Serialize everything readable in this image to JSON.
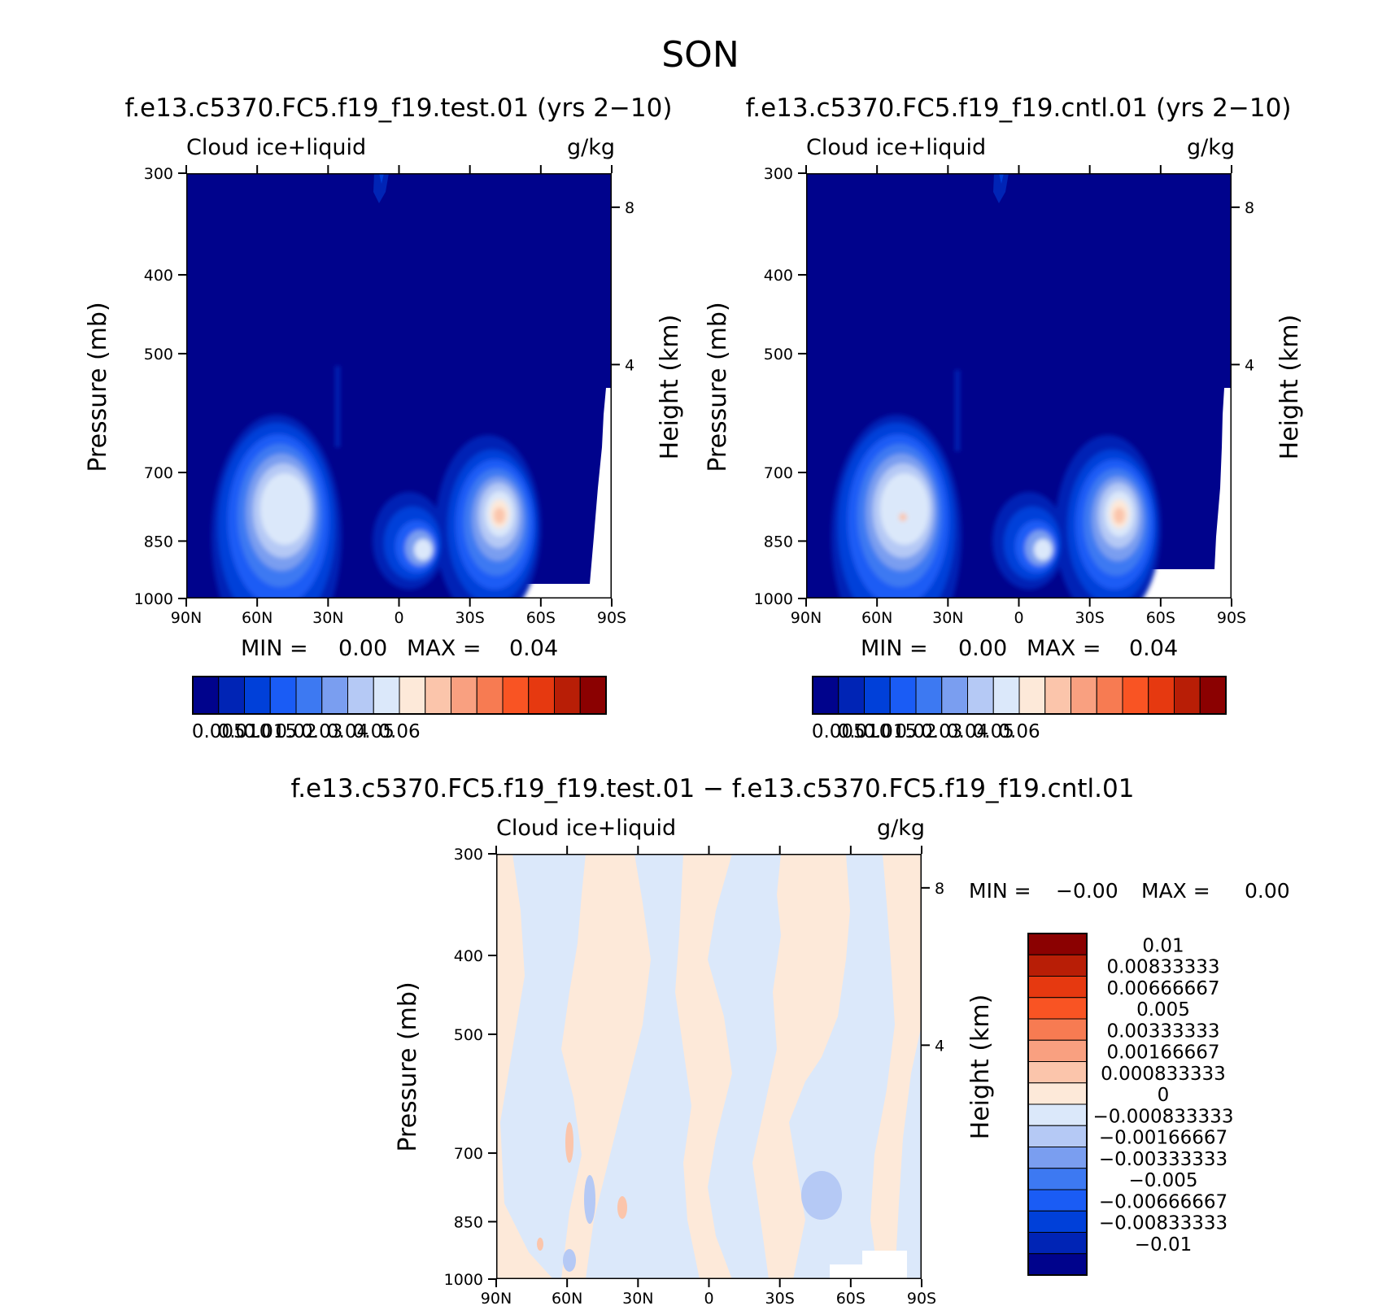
{
  "chart_data": {
    "type": "contour",
    "suptitle": "SON",
    "colorbar_colors": [
      "#00038c",
      "#0024b5",
      "#0040d9",
      "#1a5cf5",
      "#3d79f2",
      "#7a9ef0",
      "#b5c9f5",
      "#dbe8fa",
      "#fde9d9",
      "#fbc5ab",
      "#f9a080",
      "#f77b52",
      "#f95423",
      "#e63910",
      "#b81e06",
      "#8b0101"
    ],
    "diff_colors": [
      "#00038c",
      "#0024b5",
      "#0040d9",
      "#1a5cf5",
      "#3d79f2",
      "#7a9ef0",
      "#b5c9f5",
      "#dbe8fa",
      "#fde9d9",
      "#fbc5ab",
      "#f9a080",
      "#f77b52",
      "#f95423",
      "#e63910",
      "#b81e06",
      "#8b0101"
    ],
    "panels": [
      {
        "id": "test",
        "title": "f.e13.c5370.FC5.f19_f19.test.01 (yrs 2−10)",
        "left_label": "Cloud ice+liquid",
        "right_label": "g/kg",
        "ylabel": "Pressure (mb)",
        "ylabel2": "Height (km)",
        "y_ticks": [
          "300",
          "400",
          "500",
          "700",
          "850",
          "1000"
        ],
        "y2_ticks": [
          "8",
          "4"
        ],
        "x_ticks": [
          "90N",
          "60N",
          "30N",
          "0",
          "30S",
          "60S",
          "90S"
        ],
        "min_text": "MIN =",
        "min_value": "0.00",
        "max_text": "MAX =",
        "max_value": "0.04",
        "colorbar_labels": [
          "0.005",
          "0.010",
          "0.015",
          "0.02",
          "0.03",
          "0.04",
          "0.05",
          "0.06"
        ]
      },
      {
        "id": "cntl",
        "title": "f.e13.c5370.FC5.f19_f19.cntl.01 (yrs 2−10)",
        "left_label": "Cloud ice+liquid",
        "right_label": "g/kg",
        "ylabel": "Pressure (mb)",
        "ylabel2": "Height (km)",
        "y_ticks": [
          "300",
          "400",
          "500",
          "700",
          "850",
          "1000"
        ],
        "y2_ticks": [
          "8",
          "4"
        ],
        "x_ticks": [
          "90N",
          "60N",
          "30N",
          "0",
          "30S",
          "60S",
          "90S"
        ],
        "min_text": "MIN =",
        "min_value": "0.00",
        "max_text": "MAX =",
        "max_value": "0.04",
        "colorbar_labels": [
          "0.005",
          "0.010",
          "0.015",
          "0.02",
          "0.03",
          "0.04",
          "0.05",
          "0.06"
        ]
      },
      {
        "id": "diff",
        "title": "f.e13.c5370.FC5.f19_f19.test.01 − f.e13.c5370.FC5.f19_f19.cntl.01",
        "left_label": "Cloud ice+liquid",
        "right_label": "g/kg",
        "ylabel": "Pressure (mb)",
        "ylabel2": "Height (km)",
        "y_ticks": [
          "300",
          "400",
          "500",
          "700",
          "850",
          "1000"
        ],
        "y2_ticks": [
          "8",
          "4"
        ],
        "x_ticks": [
          "90N",
          "60N",
          "30N",
          "0",
          "30S",
          "60S",
          "90S"
        ],
        "min_text": "MIN =",
        "min_value": "−0.00",
        "max_text": "MAX =",
        "max_value": "0.00",
        "colorbar_labels": [
          "0.01",
          "0.00833333",
          "0.00666667",
          "0.005",
          "0.00333333",
          "0.00166667",
          "0.000833333",
          "0",
          "−0.000833333",
          "−0.00166667",
          "−0.00333333",
          "−0.005",
          "−0.00666667",
          "−0.00833333",
          "−0.01"
        ]
      }
    ]
  }
}
